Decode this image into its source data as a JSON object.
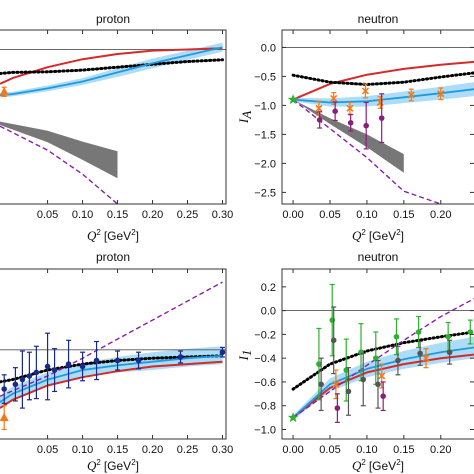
{
  "chart_data": [
    {
      "type": "line",
      "title": "proton",
      "xlabel_var": "Q",
      "xlabel_sup": "2",
      "xlabel_unit_pre": "[GeV",
      "xlabel_unit_sup": "2",
      "xlabel_unit_post": "]",
      "ylabel": "",
      "xlim": [
        -0.018,
        0.305
      ],
      "ylim": [
        -2.72,
        0.32
      ],
      "xticks": [
        {
          "v": 0.05,
          "label": "0.05"
        },
        {
          "v": 0.1,
          "label": "0.10"
        },
        {
          "v": 0.15,
          "label": "0.15"
        },
        {
          "v": 0.2,
          "label": "0.20"
        },
        {
          "v": 0.25,
          "label": "0.25"
        },
        {
          "v": 0.3,
          "label": "0.30"
        }
      ],
      "yticks": [],
      "hline": -0.02,
      "series": [
        {
          "style": "red-solid",
          "x": [
            -0.018,
            0.0,
            0.05,
            0.1,
            0.15,
            0.2,
            0.25,
            0.3
          ],
          "y": [
            -0.62,
            -0.52,
            -0.33,
            -0.19,
            -0.1,
            -0.04,
            -0.02,
            0.0
          ]
        },
        {
          "style": "black-dotted",
          "x": [
            -0.018,
            0.0,
            0.05,
            0.1,
            0.15,
            0.2,
            0.25,
            0.3
          ],
          "y": [
            -0.44,
            -0.42,
            -0.41,
            -0.38,
            -0.33,
            -0.28,
            -0.23,
            -0.2
          ]
        },
        {
          "style": "blue-solid",
          "x": [
            -0.018,
            0.0,
            0.05,
            0.1,
            0.15,
            0.2,
            0.25,
            0.3
          ],
          "y": [
            -0.82,
            -0.8,
            -0.7,
            -0.58,
            -0.42,
            -0.26,
            -0.12,
            0.02
          ]
        },
        {
          "style": "purple-dashed",
          "x": [
            -0.018,
            0.05,
            0.1,
            0.15
          ],
          "y": [
            -1.36,
            -1.78,
            -2.2,
            -2.72
          ]
        }
      ],
      "bands": [
        {
          "style": "blue-band",
          "x": [
            -0.018,
            0.0,
            0.05,
            0.1,
            0.15,
            0.2,
            0.25,
            0.3
          ],
          "lo": [
            -0.86,
            -0.84,
            -0.75,
            -0.64,
            -0.5,
            -0.35,
            -0.2,
            -0.06
          ],
          "hi": [
            -0.78,
            -0.76,
            -0.65,
            -0.52,
            -0.35,
            -0.18,
            -0.04,
            0.1
          ]
        },
        {
          "style": "gray-band",
          "x": [
            -0.018,
            0.05,
            0.1,
            0.15
          ],
          "lo": [
            -1.34,
            -1.64,
            -1.95,
            -2.27
          ],
          "hi": [
            -1.28,
            -1.44,
            -1.63,
            -1.8
          ]
        }
      ],
      "points": [
        {
          "style": "orange-triangle",
          "x": -0.012,
          "y": -0.76,
          "err": 0.08
        }
      ]
    },
    {
      "type": "line",
      "title": "neutron",
      "xlabel_var": "Q",
      "xlabel_sup": "2",
      "xlabel_unit_pre": "[GeV",
      "xlabel_unit_sup": "2",
      "xlabel_unit_post": "]",
      "ylabel_var": "I",
      "ylabel_sub": "A",
      "xlim": [
        -0.015,
        0.245
      ],
      "ylim": [
        -2.7,
        0.3
      ],
      "xticks": [
        {
          "v": 0.0,
          "label": "0.00"
        },
        {
          "v": 0.05,
          "label": "0.05"
        },
        {
          "v": 0.1,
          "label": "0.10"
        },
        {
          "v": 0.15,
          "label": "0.15"
        },
        {
          "v": 0.2,
          "label": "0.20"
        }
      ],
      "yticks": [
        {
          "v": 0.0,
          "label": "0.0"
        },
        {
          "v": -0.5,
          "label": "−0.5"
        },
        {
          "v": -1.0,
          "label": "−1.0"
        },
        {
          "v": -1.5,
          "label": "−1.5"
        },
        {
          "v": -2.0,
          "label": "−2.0"
        },
        {
          "v": -2.5,
          "label": "−2.5"
        }
      ],
      "hline": 0.0,
      "series": [
        {
          "style": "red-solid",
          "x": [
            0.0,
            0.05,
            0.1,
            0.15,
            0.2,
            0.245
          ],
          "y": [
            -0.9,
            -0.63,
            -0.47,
            -0.37,
            -0.3,
            -0.25
          ]
        },
        {
          "style": "black-dotted",
          "x": [
            0.0,
            0.05,
            0.1,
            0.15,
            0.2,
            0.245
          ],
          "y": [
            -0.48,
            -0.6,
            -0.64,
            -0.6,
            -0.51,
            -0.44
          ]
        },
        {
          "style": "blue-solid",
          "x": [
            0.0,
            0.05,
            0.1,
            0.15,
            0.2,
            0.245
          ],
          "y": [
            -0.9,
            -0.95,
            -0.93,
            -0.86,
            -0.79,
            -0.72
          ]
        },
        {
          "style": "purple-dashed",
          "x": [
            0.0,
            0.05,
            0.1,
            0.15,
            0.2
          ],
          "y": [
            -0.9,
            -1.4,
            -1.9,
            -2.48,
            -2.7
          ]
        }
      ],
      "bands": [
        {
          "style": "blue-band",
          "x": [
            0.0,
            0.05,
            0.1,
            0.15,
            0.2,
            0.245
          ],
          "lo": [
            -0.93,
            -1.02,
            -1.02,
            -0.96,
            -0.9,
            -0.84
          ],
          "hi": [
            -0.87,
            -0.88,
            -0.84,
            -0.76,
            -0.68,
            -0.6
          ]
        },
        {
          "style": "gray-band",
          "x": [
            0.0,
            0.05,
            0.1,
            0.15
          ],
          "lo": [
            -0.9,
            -1.32,
            -1.72,
            -2.16
          ],
          "hi": [
            -0.9,
            -1.22,
            -1.5,
            -1.84
          ]
        }
      ],
      "points": [
        {
          "style": "green-star",
          "x": 0.0,
          "y": -0.9,
          "err": 0.0
        },
        {
          "style": "orange-x",
          "x": 0.035,
          "y": -1.05,
          "err": 0.12
        },
        {
          "style": "purple-dot",
          "x": 0.036,
          "y": -1.25,
          "err": 0.14
        },
        {
          "style": "orange-x",
          "x": 0.055,
          "y": -0.88,
          "err": 0.1
        },
        {
          "style": "purple-dot",
          "x": 0.057,
          "y": -1.1,
          "err": 0.16
        },
        {
          "style": "orange-x",
          "x": 0.077,
          "y": -1.05,
          "err": 0.1
        },
        {
          "style": "purple-dot",
          "x": 0.078,
          "y": -1.3,
          "err": 0.14
        },
        {
          "style": "orange-x",
          "x": 0.098,
          "y": -0.75,
          "err": 0.12
        },
        {
          "style": "purple-dot",
          "x": 0.099,
          "y": -1.35,
          "err": 0.4
        },
        {
          "style": "orange-x",
          "x": 0.118,
          "y": -0.95,
          "err": 0.1
        },
        {
          "style": "purple-dot",
          "x": 0.12,
          "y": -1.22,
          "err": 0.42
        },
        {
          "style": "orange-x",
          "x": 0.16,
          "y": -0.82,
          "err": 0.1
        },
        {
          "style": "orange-x",
          "x": 0.2,
          "y": -0.8,
          "err": 0.1
        }
      ]
    },
    {
      "type": "line",
      "title": "proton",
      "xlabel_var": "Q",
      "xlabel_sup": "2",
      "xlabel_unit_pre": "[GeV",
      "xlabel_unit_sup": "2",
      "xlabel_unit_post": "]",
      "ylabel": "",
      "xlim": [
        -0.018,
        0.305
      ],
      "ylim": [
        -1.08,
        0.35
      ],
      "xticks": [
        {
          "v": 0.05,
          "label": "0.05"
        },
        {
          "v": 0.1,
          "label": "0.10"
        },
        {
          "v": 0.15,
          "label": "0.15"
        },
        {
          "v": 0.2,
          "label": "0.20"
        },
        {
          "v": 0.25,
          "label": "0.25"
        },
        {
          "v": 0.3,
          "label": "0.30"
        }
      ],
      "yticks": [],
      "hline": -0.33,
      "series": [
        {
          "style": "red-solid",
          "x": [
            -0.018,
            0.0,
            0.05,
            0.1,
            0.15,
            0.2,
            0.25,
            0.3
          ],
          "y": [
            -0.82,
            -0.75,
            -0.63,
            -0.56,
            -0.51,
            -0.47,
            -0.45,
            -0.43
          ]
        },
        {
          "style": "black-dotted",
          "x": [
            -0.018,
            0.0,
            0.05,
            0.1,
            0.15,
            0.2,
            0.25,
            0.3
          ],
          "y": [
            -0.6,
            -0.58,
            -0.5,
            -0.45,
            -0.42,
            -0.4,
            -0.39,
            -0.38
          ]
        },
        {
          "style": "blue-solid",
          "x": [
            -0.018,
            0.0,
            0.05,
            0.1,
            0.15,
            0.2,
            0.25,
            0.3
          ],
          "y": [
            -0.77,
            -0.7,
            -0.58,
            -0.5,
            -0.46,
            -0.43,
            -0.4,
            -0.38
          ]
        },
        {
          "style": "purple-dashed",
          "x": [
            -0.018,
            0.05,
            0.1,
            0.15,
            0.2,
            0.25,
            0.3
          ],
          "y": [
            -0.72,
            -0.55,
            -0.4,
            -0.24,
            -0.08,
            0.08,
            0.24
          ]
        }
      ],
      "bands": [
        {
          "style": "blue-band",
          "x": [
            -0.018,
            0.0,
            0.05,
            0.1,
            0.15,
            0.2,
            0.25,
            0.3
          ],
          "lo": [
            -0.82,
            -0.75,
            -0.63,
            -0.56,
            -0.52,
            -0.5,
            -0.47,
            -0.45
          ],
          "hi": [
            -0.72,
            -0.64,
            -0.52,
            -0.44,
            -0.39,
            -0.35,
            -0.32,
            -0.3
          ]
        }
      ],
      "points": [
        {
          "style": "orange-triangle",
          "x": -0.012,
          "y": -0.9,
          "err": 0.1
        },
        {
          "style": "navy-dot",
          "x": -0.012,
          "y": -0.66,
          "err": 0.12
        },
        {
          "style": "navy-dot",
          "x": 0.004,
          "y": -0.62,
          "err": 0.14
        },
        {
          "style": "navy-dot",
          "x": 0.014,
          "y": -0.58,
          "err": 0.24
        },
        {
          "style": "navy-dot",
          "x": 0.024,
          "y": -0.55,
          "err": 0.2
        },
        {
          "style": "navy-dot",
          "x": 0.034,
          "y": -0.52,
          "err": 0.22
        },
        {
          "style": "navy-dot",
          "x": 0.05,
          "y": -0.47,
          "err": 0.28
        },
        {
          "style": "navy-dot",
          "x": 0.06,
          "y": -0.5,
          "err": 0.18
        },
        {
          "style": "navy-dot",
          "x": 0.08,
          "y": -0.45,
          "err": 0.2
        },
        {
          "style": "navy-dot",
          "x": 0.1,
          "y": -0.47,
          "err": 0.12
        },
        {
          "style": "navy-dot",
          "x": 0.12,
          "y": -0.42,
          "err": 0.16
        },
        {
          "style": "navy-dot",
          "x": 0.15,
          "y": -0.42,
          "err": 0.08
        },
        {
          "style": "navy-dot",
          "x": 0.18,
          "y": -0.42,
          "err": 0.07
        },
        {
          "style": "navy-dot",
          "x": 0.24,
          "y": -0.39,
          "err": 0.05
        },
        {
          "style": "navy-dot",
          "x": 0.3,
          "y": -0.35,
          "err": 0.04
        }
      ]
    },
    {
      "type": "line",
      "title": "neutron",
      "xlabel_var": "Q",
      "xlabel_sup": "2",
      "xlabel_unit_pre": "[GeV",
      "xlabel_unit_sup": "2",
      "xlabel_unit_post": "]",
      "ylabel_var": "I",
      "ylabel_sub": "1",
      "xlim": [
        -0.015,
        0.245
      ],
      "ylim": [
        -1.08,
        0.35
      ],
      "xticks": [
        {
          "v": 0.0,
          "label": "0.00"
        },
        {
          "v": 0.05,
          "label": "0.05"
        },
        {
          "v": 0.1,
          "label": "0.10"
        },
        {
          "v": 0.15,
          "label": "0.15"
        },
        {
          "v": 0.2,
          "label": "0.20"
        }
      ],
      "yticks": [
        {
          "v": 0.2,
          "label": "0.2"
        },
        {
          "v": 0.0,
          "label": "0.0"
        },
        {
          "v": -0.2,
          "label": "−0.2"
        },
        {
          "v": -0.4,
          "label": "−0.4"
        },
        {
          "v": -0.6,
          "label": "−0.6"
        },
        {
          "v": -0.8,
          "label": "−0.8"
        },
        {
          "v": -1.0,
          "label": "−1.0"
        }
      ],
      "hline": 0.0,
      "series": [
        {
          "style": "red-solid",
          "x": [
            0.0,
            0.05,
            0.1,
            0.15,
            0.2,
            0.245
          ],
          "y": [
            -0.9,
            -0.65,
            -0.52,
            -0.45,
            -0.4,
            -0.37
          ]
        },
        {
          "style": "black-dotted",
          "x": [
            0.0,
            0.05,
            0.1,
            0.15,
            0.2,
            0.245
          ],
          "y": [
            -0.66,
            -0.45,
            -0.34,
            -0.27,
            -0.22,
            -0.18
          ]
        },
        {
          "style": "blue-solid",
          "x": [
            0.0,
            0.05,
            0.1,
            0.15,
            0.2,
            0.245
          ],
          "y": [
            -0.9,
            -0.62,
            -0.49,
            -0.41,
            -0.35,
            -0.31
          ]
        },
        {
          "style": "purple-dashed",
          "x": [
            0.0,
            0.05,
            0.1,
            0.15,
            0.2,
            0.245
          ],
          "y": [
            -0.9,
            -0.68,
            -0.46,
            -0.25,
            -0.05,
            0.1
          ]
        }
      ],
      "bands": [
        {
          "style": "blue-band",
          "x": [
            0.0,
            0.05,
            0.1,
            0.15,
            0.2,
            0.245
          ],
          "lo": [
            -0.92,
            -0.68,
            -0.56,
            -0.49,
            -0.44,
            -0.4
          ],
          "hi": [
            -0.88,
            -0.57,
            -0.43,
            -0.34,
            -0.27,
            -0.22
          ]
        }
      ],
      "points": [
        {
          "style": "green-star",
          "x": 0.0,
          "y": -0.9,
          "err": 0.0
        },
        {
          "style": "green-dot",
          "x": 0.035,
          "y": -0.45,
          "err": 0.3
        },
        {
          "style": "gray-dot",
          "x": 0.038,
          "y": -0.62,
          "err": 0.22
        },
        {
          "style": "green-dot",
          "x": 0.053,
          "y": -0.08,
          "err": 0.3
        },
        {
          "style": "gray-dot",
          "x": 0.055,
          "y": -0.25,
          "err": 0.28
        },
        {
          "style": "orange-x",
          "x": 0.058,
          "y": -0.62,
          "err": 0.12
        },
        {
          "style": "purple-dot",
          "x": 0.06,
          "y": -0.82,
          "err": 0.12
        },
        {
          "style": "green-dot",
          "x": 0.072,
          "y": -0.5,
          "err": 0.26
        },
        {
          "style": "gray-dot",
          "x": 0.075,
          "y": -0.68,
          "err": 0.2
        },
        {
          "style": "green-dot",
          "x": 0.092,
          "y": -0.35,
          "err": 0.24
        },
        {
          "style": "gray-dot",
          "x": 0.095,
          "y": -0.58,
          "err": 0.22
        },
        {
          "style": "green-dot",
          "x": 0.112,
          "y": -0.4,
          "err": 0.22
        },
        {
          "style": "gray-dot",
          "x": 0.115,
          "y": -0.62,
          "err": 0.2
        },
        {
          "style": "orange-x",
          "x": 0.12,
          "y": -0.55,
          "err": 0.1
        },
        {
          "style": "purple-dot",
          "x": 0.122,
          "y": -0.72,
          "err": 0.12
        },
        {
          "style": "green-dot",
          "x": 0.14,
          "y": -0.22,
          "err": 0.15
        },
        {
          "style": "gray-dot",
          "x": 0.142,
          "y": -0.42,
          "err": 0.12
        },
        {
          "style": "green-dot",
          "x": 0.17,
          "y": -0.18,
          "err": 0.13
        },
        {
          "style": "gray-dot",
          "x": 0.172,
          "y": -0.36,
          "err": 0.1
        },
        {
          "style": "orange-x",
          "x": 0.18,
          "y": -0.4,
          "err": 0.08
        },
        {
          "style": "green-dot",
          "x": 0.21,
          "y": -0.22,
          "err": 0.12
        },
        {
          "style": "gray-dot",
          "x": 0.212,
          "y": -0.35,
          "err": 0.1
        },
        {
          "style": "green-dot",
          "x": 0.24,
          "y": -0.18,
          "err": 0.1
        }
      ]
    }
  ]
}
